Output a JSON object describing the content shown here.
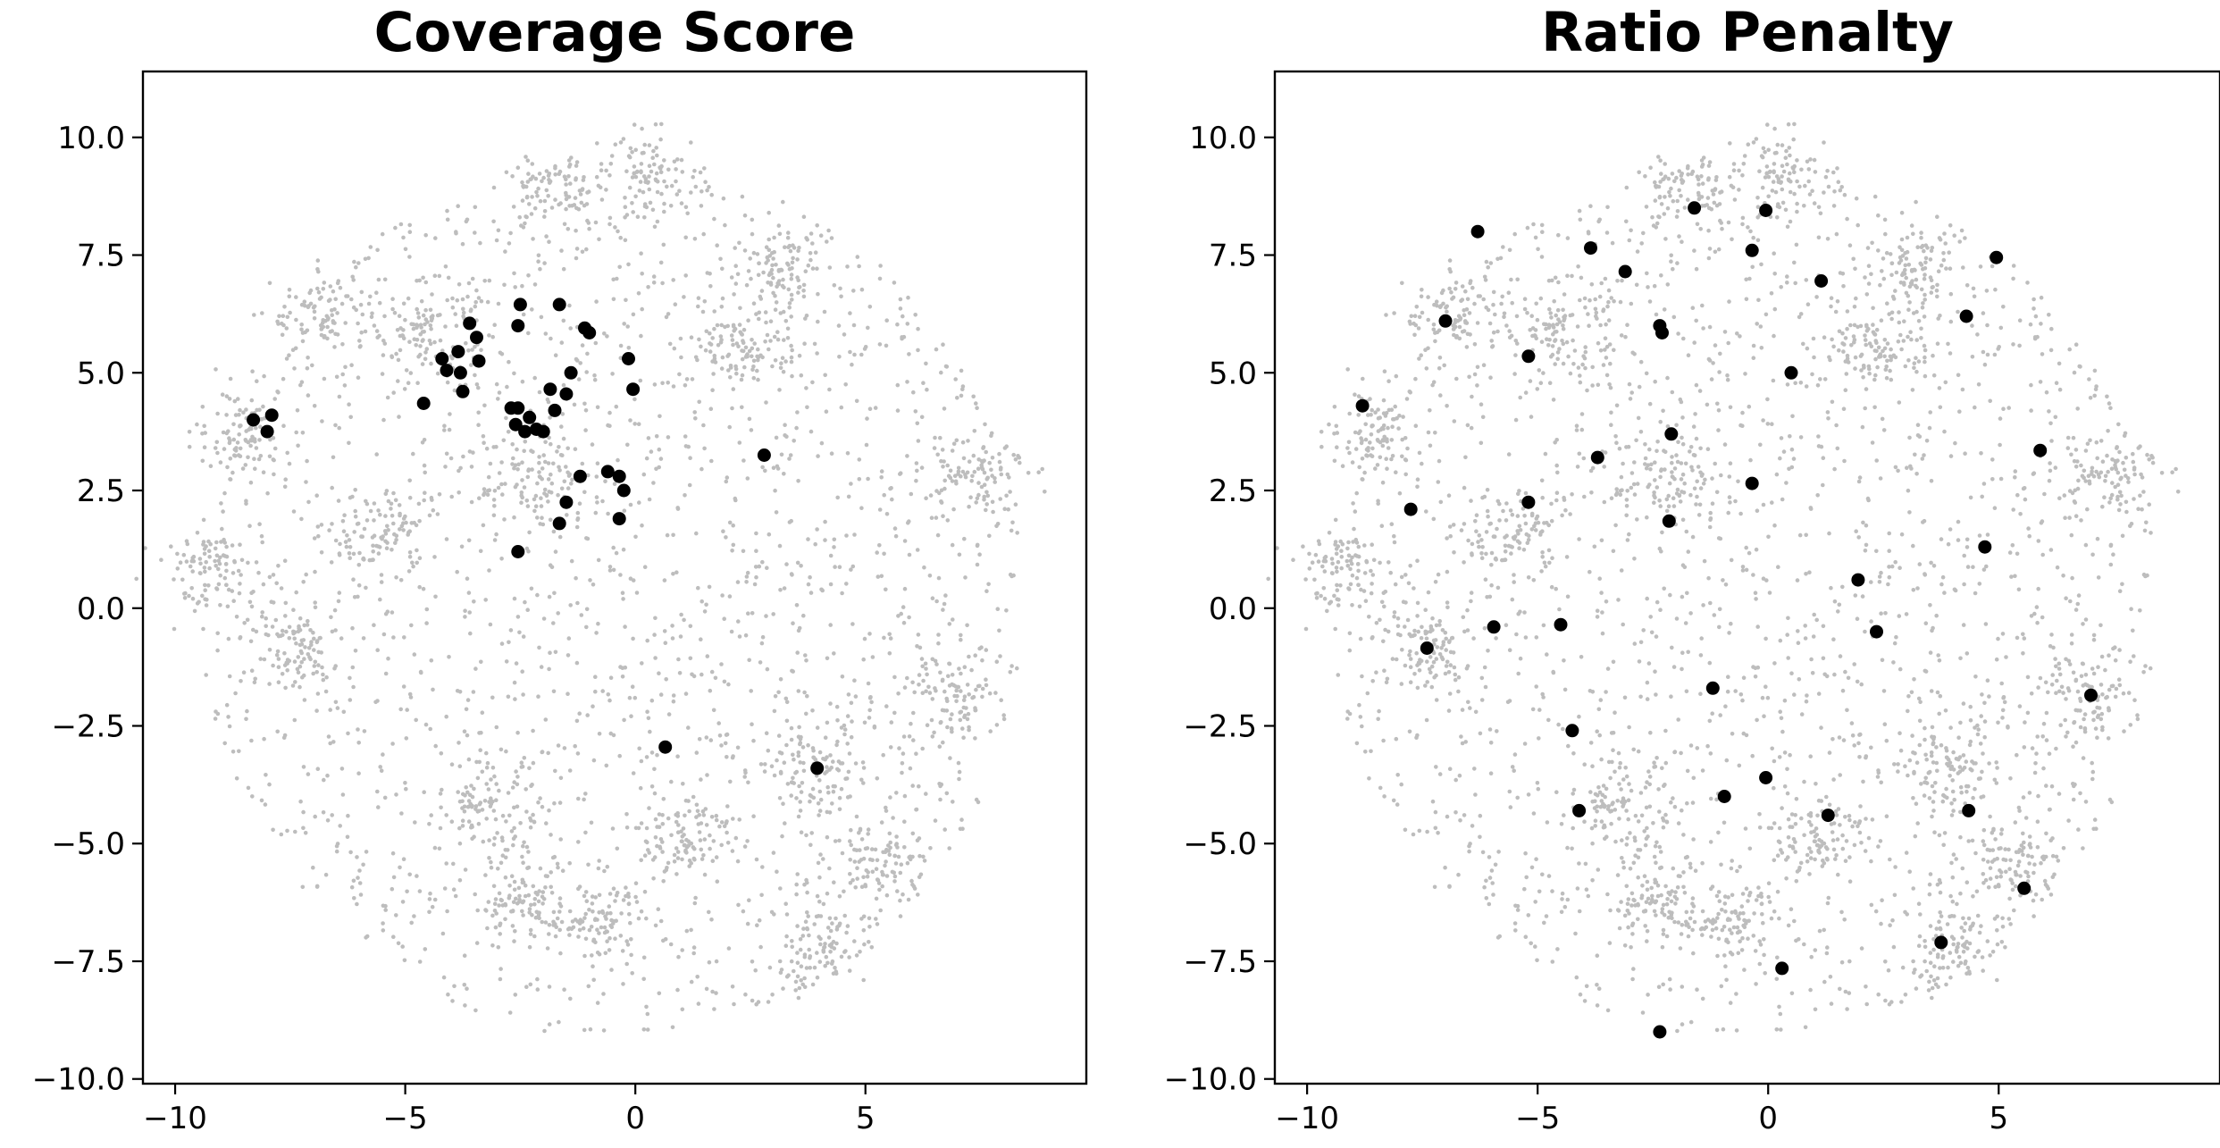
{
  "chart_data": [
    {
      "type": "scatter",
      "title": "Coverage Score",
      "xlabel": "",
      "ylabel": "",
      "xlim": [
        -10.7,
        9.8
      ],
      "ylim": [
        -10.1,
        11.4
      ],
      "xticks": [
        -10,
        -5,
        0,
        5
      ],
      "yticks": [
        -10.0,
        -7.5,
        -5.0,
        -2.5,
        0.0,
        2.5,
        5.0,
        7.5,
        10.0
      ],
      "xtick_labels": [
        "−10",
        "−5",
        "0",
        "5"
      ],
      "ytick_labels": [
        "−10.0",
        "−7.5",
        "−5.0",
        "−2.5",
        "0.0",
        "2.5",
        "5.0",
        "7.5",
        "10.0"
      ],
      "grid": false,
      "background_color": "#bdbdbd",
      "selected_color": "#000000",
      "selected_points": [
        [
          -8.3,
          4.0
        ],
        [
          -7.9,
          4.1
        ],
        [
          -8.0,
          3.75
        ],
        [
          -4.6,
          4.35
        ],
        [
          -4.2,
          5.3
        ],
        [
          -4.1,
          5.05
        ],
        [
          -3.85,
          5.45
        ],
        [
          -3.8,
          5.0
        ],
        [
          -3.75,
          4.6
        ],
        [
          -3.6,
          6.05
        ],
        [
          -3.45,
          5.75
        ],
        [
          -3.4,
          5.25
        ],
        [
          -2.5,
          6.45
        ],
        [
          -2.55,
          6.0
        ],
        [
          -1.65,
          6.45
        ],
        [
          -1.1,
          5.95
        ],
        [
          -1.0,
          5.85
        ],
        [
          -1.85,
          4.65
        ],
        [
          -1.4,
          5.0
        ],
        [
          -1.5,
          4.55
        ],
        [
          -1.75,
          4.2
        ],
        [
          -2.6,
          3.9
        ],
        [
          -2.4,
          3.75
        ],
        [
          -2.3,
          4.05
        ],
        [
          -2.15,
          3.8
        ],
        [
          -2.0,
          3.75
        ],
        [
          -2.55,
          4.25
        ],
        [
          -2.7,
          4.25
        ],
        [
          -0.15,
          5.3
        ],
        [
          -0.05,
          4.65
        ],
        [
          -1.2,
          2.8
        ],
        [
          -0.6,
          2.9
        ],
        [
          -0.35,
          2.8
        ],
        [
          -0.25,
          2.5
        ],
        [
          -1.5,
          2.25
        ],
        [
          -1.65,
          1.8
        ],
        [
          -0.35,
          1.9
        ],
        [
          -2.55,
          1.2
        ],
        [
          2.8,
          3.25
        ],
        [
          0.65,
          -2.95
        ],
        [
          3.95,
          -3.4
        ]
      ]
    },
    {
      "type": "scatter",
      "title": "Ratio Penalty",
      "xlabel": "",
      "ylabel": "",
      "xlim": [
        -10.7,
        9.8
      ],
      "ylim": [
        -10.1,
        11.4
      ],
      "xticks": [
        -10,
        -5,
        0,
        5
      ],
      "yticks": [
        -10.0,
        -7.5,
        -5.0,
        -2.5,
        0.0,
        2.5,
        5.0,
        7.5,
        10.0
      ],
      "xtick_labels": [
        "−10",
        "−5",
        "0",
        "5"
      ],
      "ytick_labels": [
        "−10.0",
        "−7.5",
        "−5.0",
        "−2.5",
        "0.0",
        "2.5",
        "5.0",
        "7.5",
        "10.0"
      ],
      "grid": false,
      "background_color": "#bdbdbd",
      "selected_color": "#000000",
      "selected_points": [
        [
          -8.8,
          4.3
        ],
        [
          -7.75,
          2.1
        ],
        [
          -7.4,
          -0.85
        ],
        [
          -7.0,
          6.1
        ],
        [
          -6.3,
          8.0
        ],
        [
          -5.95,
          -0.4
        ],
        [
          -5.2,
          5.35
        ],
        [
          -5.2,
          2.25
        ],
        [
          -4.5,
          -0.35
        ],
        [
          -4.25,
          -2.6
        ],
        [
          -4.1,
          -4.3
        ],
        [
          -3.85,
          7.65
        ],
        [
          -3.7,
          3.2
        ],
        [
          -3.1,
          7.15
        ],
        [
          -2.35,
          6.0
        ],
        [
          -2.3,
          5.85
        ],
        [
          -2.1,
          3.7
        ],
        [
          -2.15,
          1.85
        ],
        [
          -2.35,
          -9.0
        ],
        [
          -1.6,
          8.5
        ],
        [
          -1.2,
          -1.7
        ],
        [
          -0.95,
          -4.0
        ],
        [
          -0.35,
          7.6
        ],
        [
          -0.35,
          2.65
        ],
        [
          -0.05,
          8.45
        ],
        [
          -0.05,
          -3.6
        ],
        [
          0.3,
          -7.65
        ],
        [
          0.5,
          5.0
        ],
        [
          1.15,
          6.95
        ],
        [
          1.3,
          -4.4
        ],
        [
          1.95,
          0.6
        ],
        [
          2.35,
          -0.5
        ],
        [
          3.75,
          -7.1
        ],
        [
          4.35,
          -4.3
        ],
        [
          4.3,
          6.2
        ],
        [
          4.7,
          1.3
        ],
        [
          4.95,
          7.45
        ],
        [
          5.55,
          -5.95
        ],
        [
          5.9,
          3.35
        ],
        [
          7.0,
          -1.85
        ]
      ]
    }
  ]
}
